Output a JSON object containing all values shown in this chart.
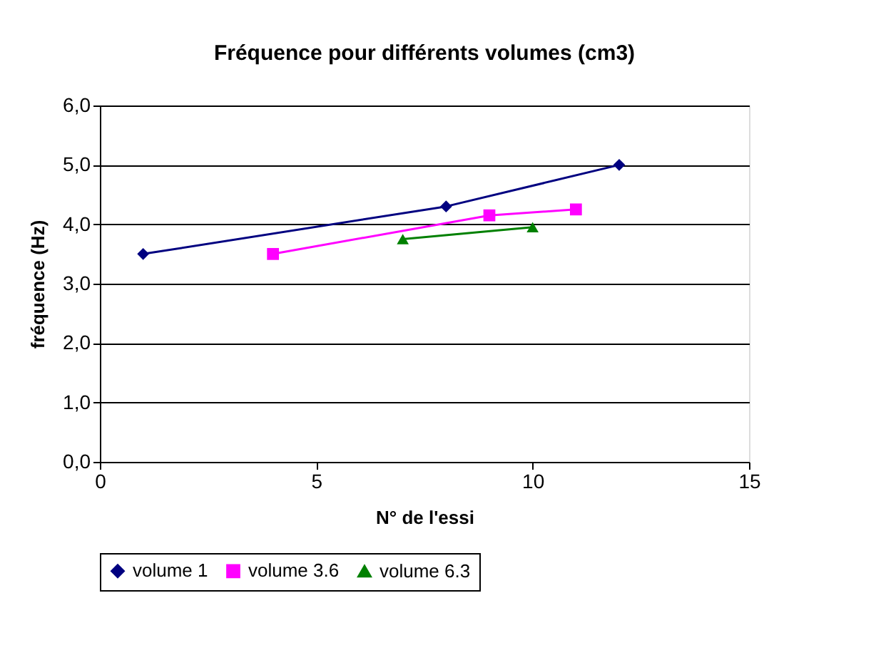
{
  "chart_data": {
    "type": "line",
    "title": "Fréquence pour différents volumes (cm3)",
    "xlabel": "N° de l'essi",
    "ylabel": "fréquence (Hz)",
    "xlim": [
      0,
      15
    ],
    "xticks": [
      0,
      5,
      10,
      15
    ],
    "ylim": [
      0,
      6
    ],
    "yticks": [
      {
        "value": 0,
        "label": "0,0"
      },
      {
        "value": 1,
        "label": "1,0"
      },
      {
        "value": 2,
        "label": "2,0"
      },
      {
        "value": 3,
        "label": "3,0"
      },
      {
        "value": 4,
        "label": "4,0"
      },
      {
        "value": 5,
        "label": "5,0"
      },
      {
        "value": 6,
        "label": "6,0"
      }
    ],
    "grid": "y",
    "legend": "bottom",
    "line_style": "solid",
    "series": [
      {
        "name": "volume 1",
        "color": "#000080",
        "marker": "diamond",
        "x": [
          1,
          8,
          12
        ],
        "values": [
          3.5,
          4.3,
          5.0
        ]
      },
      {
        "name": "volume 3.6",
        "color": "#ff00ff",
        "marker": "square",
        "x": [
          4,
          9,
          11
        ],
        "values": [
          3.5,
          4.15,
          4.25
        ]
      },
      {
        "name": "volume 6.3",
        "color": "#008000",
        "marker": "triangle",
        "x": [
          7,
          10
        ],
        "values": [
          3.75,
          3.95
        ]
      }
    ]
  }
}
